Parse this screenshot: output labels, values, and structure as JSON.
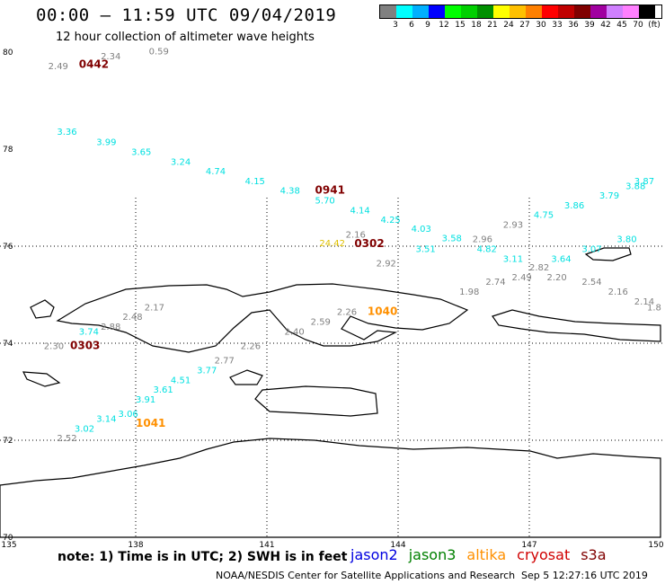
{
  "header": {
    "title": "00:00 – 11:59 UTC 09/04/2019",
    "subtitle": "12 hour collection of altimeter wave heights"
  },
  "legend": {
    "colors": [
      "#808080",
      "#00ffff",
      "#00b0ff",
      "#0000ff",
      "#00ff00",
      "#00d000",
      "#009000",
      "#ffff00",
      "#ffc000",
      "#ff8000",
      "#ff0000",
      "#c00000",
      "#800000",
      "#a000a0",
      "#d080ff",
      "#ff80ff",
      "#000000"
    ],
    "labels": [
      "3",
      "6",
      "9",
      "12",
      "15",
      "18",
      "21",
      "24",
      "27",
      "30",
      "33",
      "36",
      "39",
      "42",
      "45",
      "70"
    ],
    "unit": "(ft)"
  },
  "axes": {
    "lat_labels": [
      "80",
      "78",
      "76",
      "74",
      "72",
      "70"
    ],
    "lon_labels": [
      "135",
      "138",
      "141",
      "144",
      "147",
      "150"
    ]
  },
  "colors": {
    "gray": "#808080",
    "cyan": "#00e0e0",
    "orange": "#ff9000",
    "yellow": "#e0c000",
    "darkred": "#800000"
  },
  "map_data": {
    "swh_labels": [
      {
        "text": "2.49",
        "lon": 136.0,
        "lat": 79.65,
        "color": "gray"
      },
      {
        "text": "2.34",
        "lon": 137.2,
        "lat": 79.85,
        "color": "gray"
      },
      {
        "text": "0.59",
        "lon": 138.3,
        "lat": 79.95,
        "color": "gray"
      },
      {
        "text": "3.36",
        "lon": 136.2,
        "lat": 78.3,
        "color": "cyan"
      },
      {
        "text": "3.99",
        "lon": 137.1,
        "lat": 78.08,
        "color": "cyan"
      },
      {
        "text": "3.65",
        "lon": 137.9,
        "lat": 77.88,
        "color": "cyan"
      },
      {
        "text": "3.24",
        "lon": 138.8,
        "lat": 77.68,
        "color": "cyan"
      },
      {
        "text": "4.74",
        "lon": 139.6,
        "lat": 77.48,
        "color": "cyan"
      },
      {
        "text": "4.15",
        "lon": 140.5,
        "lat": 77.28,
        "color": "cyan"
      },
      {
        "text": "4.38",
        "lon": 141.3,
        "lat": 77.08,
        "color": "cyan"
      },
      {
        "text": "5.70",
        "lon": 142.1,
        "lat": 76.88,
        "color": "cyan"
      },
      {
        "text": "4.14",
        "lon": 142.9,
        "lat": 76.68,
        "color": "cyan"
      },
      {
        "text": "4.25",
        "lon": 143.6,
        "lat": 76.48,
        "color": "cyan"
      },
      {
        "text": "4.03",
        "lon": 144.3,
        "lat": 76.3,
        "color": "cyan"
      },
      {
        "text": "3.51",
        "lon": 144.4,
        "lat": 75.88,
        "color": "cyan"
      },
      {
        "text": "3.58",
        "lon": 145.0,
        "lat": 76.1,
        "color": "cyan"
      },
      {
        "text": "4.82",
        "lon": 145.8,
        "lat": 75.88,
        "color": "cyan"
      },
      {
        "text": "3.11",
        "lon": 146.4,
        "lat": 75.68,
        "color": "cyan"
      },
      {
        "text": "4.75",
        "lon": 147.1,
        "lat": 76.58,
        "color": "cyan"
      },
      {
        "text": "3.86",
        "lon": 147.8,
        "lat": 76.78,
        "color": "cyan"
      },
      {
        "text": "3.79",
        "lon": 148.6,
        "lat": 76.98,
        "color": "cyan"
      },
      {
        "text": "3.88",
        "lon": 149.2,
        "lat": 77.18,
        "color": "cyan"
      },
      {
        "text": "3.87",
        "lon": 149.4,
        "lat": 77.28,
        "color": "cyan"
      },
      {
        "text": "3.80",
        "lon": 149.0,
        "lat": 76.08,
        "color": "cyan"
      },
      {
        "text": "3.07",
        "lon": 148.2,
        "lat": 75.88,
        "color": "cyan"
      },
      {
        "text": "3.64",
        "lon": 147.5,
        "lat": 75.68,
        "color": "cyan"
      },
      {
        "text": "3.74",
        "lon": 136.7,
        "lat": 74.18,
        "color": "cyan"
      },
      {
        "text": "3.77",
        "lon": 139.4,
        "lat": 73.38,
        "color": "cyan"
      },
      {
        "text": "4.51",
        "lon": 138.8,
        "lat": 73.18,
        "color": "cyan"
      },
      {
        "text": "3.61",
        "lon": 138.4,
        "lat": 72.98,
        "color": "cyan"
      },
      {
        "text": "3.91",
        "lon": 138.0,
        "lat": 72.78,
        "color": "cyan"
      },
      {
        "text": "3.06",
        "lon": 137.6,
        "lat": 72.48,
        "color": "cyan"
      },
      {
        "text": "3.14",
        "lon": 137.1,
        "lat": 72.38,
        "color": "cyan"
      },
      {
        "text": "3.02",
        "lon": 136.6,
        "lat": 72.18,
        "color": "cyan"
      },
      {
        "text": "2.16",
        "lon": 142.8,
        "lat": 76.18,
        "color": "gray"
      },
      {
        "text": "2.92",
        "lon": 143.5,
        "lat": 75.58,
        "color": "gray"
      },
      {
        "text": "2.96",
        "lon": 145.7,
        "lat": 76.08,
        "color": "gray"
      },
      {
        "text": "2.93",
        "lon": 146.4,
        "lat": 76.38,
        "color": "gray"
      },
      {
        "text": "1.98",
        "lon": 145.4,
        "lat": 75.0,
        "color": "gray"
      },
      {
        "text": "2.74",
        "lon": 146.0,
        "lat": 75.2,
        "color": "gray"
      },
      {
        "text": "2.49",
        "lon": 146.6,
        "lat": 75.3,
        "color": "gray"
      },
      {
        "text": "2.82",
        "lon": 147.0,
        "lat": 75.5,
        "color": "gray"
      },
      {
        "text": "2.20",
        "lon": 147.4,
        "lat": 75.3,
        "color": "gray"
      },
      {
        "text": "2.54",
        "lon": 148.2,
        "lat": 75.2,
        "color": "gray"
      },
      {
        "text": "2.16",
        "lon": 148.8,
        "lat": 75.0,
        "color": "gray"
      },
      {
        "text": "2.14",
        "lon": 149.4,
        "lat": 74.8,
        "color": "gray"
      },
      {
        "text": "1.8",
        "lon": 150.0,
        "lat": 74.68,
        "color": "gray"
      },
      {
        "text": "2.17",
        "lon": 138.2,
        "lat": 74.68,
        "color": "gray"
      },
      {
        "text": "2.48",
        "lon": 137.7,
        "lat": 74.48,
        "color": "gray"
      },
      {
        "text": "2.88",
        "lon": 137.2,
        "lat": 74.28,
        "color": "gray"
      },
      {
        "text": "2.30",
        "lon": 135.9,
        "lat": 73.88,
        "color": "gray"
      },
      {
        "text": "2.40",
        "lon": 141.4,
        "lat": 74.18,
        "color": "gray"
      },
      {
        "text": "2.59",
        "lon": 142.0,
        "lat": 74.38,
        "color": "gray"
      },
      {
        "text": "2.26",
        "lon": 142.6,
        "lat": 74.58,
        "color": "gray"
      },
      {
        "text": "2.26",
        "lon": 140.4,
        "lat": 73.88,
        "color": "gray"
      },
      {
        "text": "2.77",
        "lon": 139.8,
        "lat": 73.58,
        "color": "gray"
      },
      {
        "text": "2.52",
        "lon": 136.2,
        "lat": 71.98,
        "color": "gray"
      },
      {
        "text": "24.42",
        "lon": 142.2,
        "lat": 76.0,
        "color": "yellow"
      }
    ],
    "time_labels": [
      {
        "text": "0442",
        "lon": 136.7,
        "lat": 79.68,
        "color": "darkred"
      },
      {
        "text": "0941",
        "lon": 142.1,
        "lat": 77.08,
        "color": "darkred"
      },
      {
        "text": "0302",
        "lon": 143.0,
        "lat": 75.98,
        "color": "darkred"
      },
      {
        "text": "0303",
        "lon": 136.5,
        "lat": 73.88,
        "color": "darkred"
      },
      {
        "text": "1040",
        "lon": 143.3,
        "lat": 74.58,
        "color": "orange"
      },
      {
        "text": "1041",
        "lon": 138.0,
        "lat": 72.28,
        "color": "orange"
      }
    ]
  },
  "footer": {
    "note": "note: 1) Time is in UTC; 2) SWH is in feet",
    "satellites": [
      {
        "name": "jason2",
        "color": "#0000e0"
      },
      {
        "name": "jason3",
        "color": "#008000"
      },
      {
        "name": "altika",
        "color": "#ff9000"
      },
      {
        "name": "cryosat",
        "color": "#d00000"
      },
      {
        "name": "s3a",
        "color": "#800000"
      }
    ],
    "credit": "NOAA/NESDIS Center for Satellite Applications and Research",
    "timestamp": "Sep  5 12:27:16 UTC 2019"
  }
}
